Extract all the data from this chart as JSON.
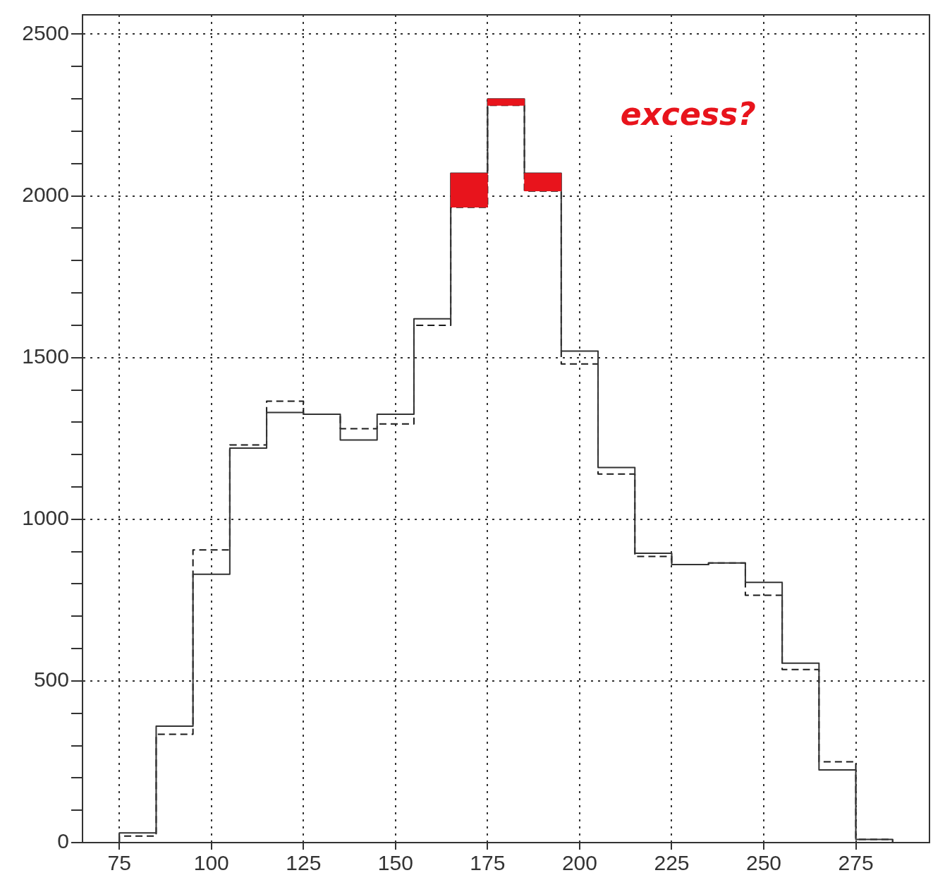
{
  "chart_data": {
    "type": "histogram",
    "bins": [
      75,
      85,
      95,
      105,
      115,
      125,
      135,
      145,
      155,
      165,
      175,
      185,
      195,
      205,
      215,
      225,
      235,
      245,
      255,
      265,
      275,
      285
    ],
    "series": [
      {
        "color": "#333333",
        "line_style": "solid",
        "values": [
          30,
          360,
          830,
          1220,
          1330,
          1325,
          1245,
          1325,
          1620,
          2070,
          2300,
          2070,
          1520,
          1160,
          895,
          860,
          865,
          805,
          555,
          225,
          10
        ]
      },
      {
        "color": "#1a1a1a",
        "line_style": "dashed",
        "values": [
          20,
          335,
          905,
          1230,
          1365,
          1325,
          1280,
          1295,
          1600,
          1965,
          2280,
          2015,
          1480,
          1140,
          885,
          860,
          865,
          765,
          535,
          250,
          10
        ]
      },
      {
        "type": "bar",
        "color": "#e8141c",
        "x": [
          170,
          180,
          190
        ],
        "base": [
          1965,
          2280,
          2015
        ],
        "values": [
          105,
          20,
          55
        ]
      }
    ],
    "xlim": [
      65,
      295
    ],
    "ylim": [
      0,
      2560
    ],
    "xticks": [
      75,
      100,
      125,
      150,
      175,
      200,
      225,
      250,
      275
    ],
    "yticks": [
      0,
      {
        "value": 100,
        "label": null
      },
      {
        "value": 200,
        "label": null
      },
      {
        "value": 300,
        "label": null
      },
      {
        "value": 400,
        "label": null
      },
      500,
      {
        "value": 600,
        "label": null
      },
      {
        "value": 700,
        "label": null
      },
      {
        "value": 800,
        "label": null
      },
      {
        "value": 900,
        "label": null
      },
      1000,
      {
        "value": 1100,
        "label": null
      },
      {
        "value": 1200,
        "label": null
      },
      {
        "value": 1300,
        "label": null
      },
      {
        "value": 1400,
        "label": null
      },
      1500,
      {
        "value": 1600,
        "label": null
      },
      {
        "value": 1700,
        "label": null
      },
      {
        "value": 1800,
        "label": null
      },
      {
        "value": 1900,
        "label": null
      },
      2000,
      {
        "value": 2100,
        "label": null
      },
      {
        "value": 2200,
        "label": null
      },
      {
        "value": 2300,
        "label": null
      },
      {
        "value": 2400,
        "label": null
      },
      2500
    ],
    "grid": true,
    "legend": false,
    "annotations": [
      "excess?"
    ]
  }
}
